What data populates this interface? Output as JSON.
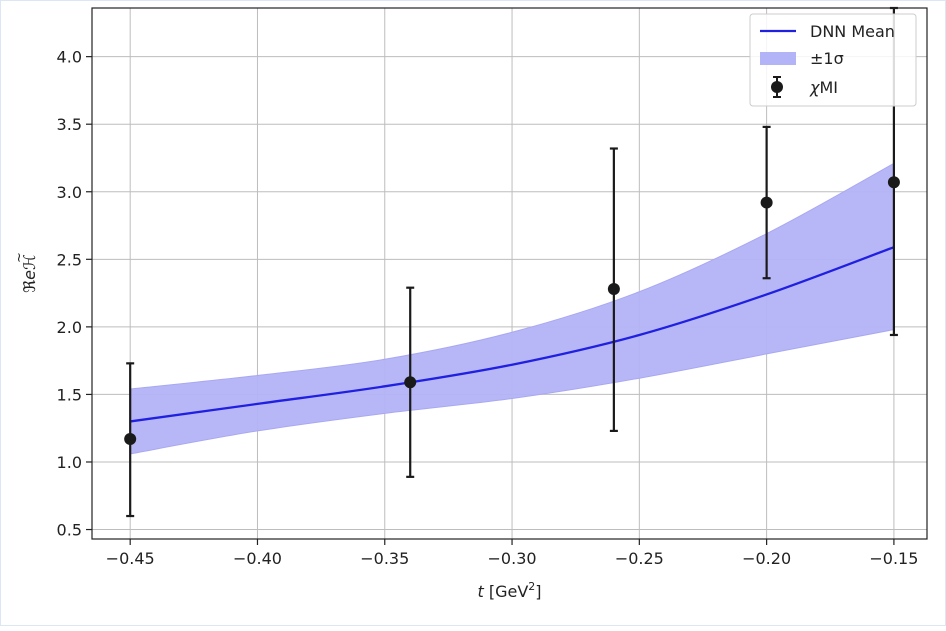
{
  "chart_data": {
    "type": "line",
    "xlabel": "t [GeV²]",
    "xlabel_parts": {
      "var": "t",
      "unit_open": " [GeV",
      "sup": "2",
      "unit_close": "]"
    },
    "ylabel": "ℜeH̃",
    "ylabel_parts": {
      "re": "ℜe",
      "sym": "ℋ",
      "tilde": "~"
    },
    "xlim": [
      -0.465,
      -0.137
    ],
    "ylim": [
      0.43,
      4.36
    ],
    "x_ticks": [
      -0.45,
      -0.4,
      -0.35,
      -0.3,
      -0.25,
      -0.2,
      -0.15
    ],
    "x_tick_labels": [
      "−0.45",
      "−0.40",
      "−0.35",
      "−0.30",
      "−0.25",
      "−0.20",
      "−0.15"
    ],
    "y_ticks": [
      0.5,
      1.0,
      1.5,
      2.0,
      2.5,
      3.0,
      3.5,
      4.0
    ],
    "y_tick_labels": [
      "0.5",
      "1.0",
      "1.5",
      "2.0",
      "2.5",
      "3.0",
      "3.5",
      "4.0"
    ],
    "grid": true,
    "legend_position": "top-right",
    "series": [
      {
        "name": "DNN Mean",
        "kind": "line",
        "color": "#2020e0",
        "x": [
          -0.45,
          -0.4,
          -0.35,
          -0.3,
          -0.25,
          -0.2,
          -0.15
        ],
        "y": [
          1.3,
          1.43,
          1.56,
          1.72,
          1.94,
          2.24,
          2.59
        ]
      },
      {
        "name": "±1σ",
        "kind": "band",
        "color": "#b3b3f7",
        "x": [
          -0.45,
          -0.4,
          -0.35,
          -0.3,
          -0.25,
          -0.2,
          -0.15
        ],
        "y_low": [
          1.06,
          1.23,
          1.36,
          1.47,
          1.62,
          1.8,
          1.98
        ],
        "y_high": [
          1.54,
          1.64,
          1.76,
          1.96,
          2.26,
          2.69,
          3.21
        ]
      },
      {
        "name": "χMI",
        "kind": "errorbar",
        "color": "#1a1a1a",
        "x": [
          -0.45,
          -0.34,
          -0.26,
          -0.2,
          -0.15
        ],
        "y": [
          1.17,
          1.59,
          2.28,
          2.92,
          3.07
        ],
        "y_low": [
          0.6,
          0.89,
          1.23,
          2.36,
          1.94
        ],
        "y_high": [
          1.73,
          2.29,
          3.32,
          3.48,
          4.36
        ]
      }
    ],
    "legend": [
      {
        "label": "DNN Mean",
        "kind": "line"
      },
      {
        "label": "±1σ",
        "kind": "band"
      },
      {
        "label_italic": "χ",
        "label_rest": "MI",
        "kind": "errorbar"
      }
    ]
  }
}
